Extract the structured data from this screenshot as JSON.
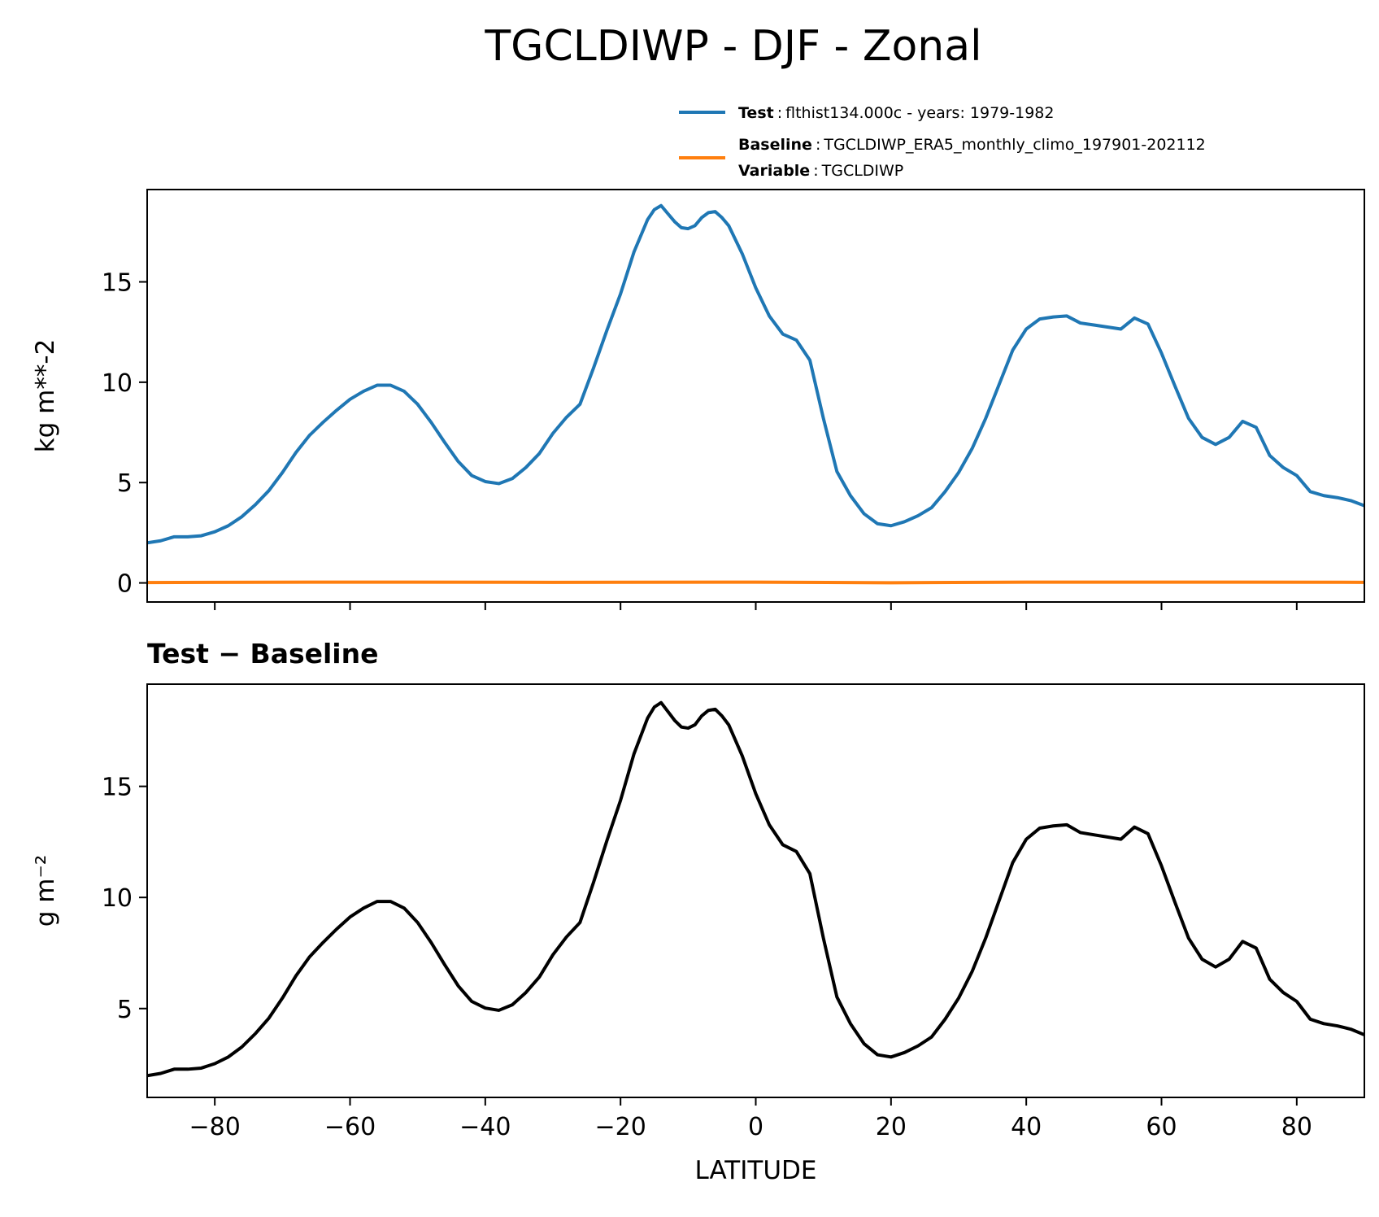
{
  "figure": {
    "title": "TGCLDIWP - DJF - Zonal"
  },
  "legend": {
    "test": {
      "key": "Test",
      "sep": ":",
      "text": "flthist134.000c - years: 1979-1982"
    },
    "baseline": {
      "key": "Baseline",
      "sep": ":",
      "text": "TGCLDIWP_ERA5_monthly_climo_197901-202112"
    },
    "variable": {
      "key": "Variable",
      "sep": ":",
      "text": "TGCLDIWP"
    }
  },
  "colors": {
    "test": "#1f77b4",
    "baseline": "#ff7f0e",
    "difference": "#000000"
  },
  "chart_data": [
    {
      "type": "line",
      "xlabel": "",
      "ylabel": "kg m**-2",
      "xlim": [
        -90,
        90
      ],
      "ylim": [
        -0.95,
        19.6
      ],
      "xticks": [
        -80,
        -60,
        -40,
        -20,
        0,
        20,
        40,
        60,
        80
      ],
      "xtick_labels_visible": false,
      "yticks": [
        0,
        5,
        10,
        15
      ],
      "series": [
        {
          "name": "Test",
          "x": [
            -90,
            -88,
            -86,
            -84,
            -82,
            -80,
            -78,
            -76,
            -74,
            -72,
            -70,
            -68,
            -66,
            -64,
            -62,
            -60,
            -58,
            -56,
            -54,
            -52,
            -50,
            -48,
            -46,
            -44,
            -42,
            -40,
            -38,
            -36,
            -34,
            -32,
            -30,
            -28,
            -26,
            -24,
            -22,
            -20,
            -18,
            -16,
            -15,
            -14,
            -13,
            -12,
            -11,
            -10,
            -9,
            -8,
            -7,
            -6,
            -5,
            -4,
            -2,
            0,
            2,
            4,
            6,
            8,
            10,
            12,
            14,
            16,
            18,
            20,
            22,
            24,
            26,
            28,
            30,
            32,
            34,
            36,
            38,
            40,
            42,
            44,
            46,
            48,
            50,
            52,
            54,
            56,
            58,
            60,
            62,
            64,
            66,
            68,
            70,
            72,
            74,
            76,
            78,
            80,
            82,
            84,
            86,
            88,
            90
          ],
          "values": [
            2.0,
            2.1,
            2.3,
            2.3,
            2.35,
            2.55,
            2.85,
            3.3,
            3.9,
            4.6,
            5.5,
            6.5,
            7.35,
            8.0,
            8.6,
            9.15,
            9.55,
            9.85,
            9.85,
            9.55,
            8.9,
            8.0,
            7.0,
            6.05,
            5.35,
            5.05,
            4.95,
            5.2,
            5.75,
            6.45,
            7.45,
            8.25,
            8.9,
            10.7,
            12.6,
            14.4,
            16.5,
            18.1,
            18.6,
            18.8,
            18.4,
            18.0,
            17.7,
            17.65,
            17.8,
            18.2,
            18.45,
            18.5,
            18.2,
            17.8,
            16.4,
            14.7,
            13.3,
            12.4,
            12.1,
            11.1,
            8.2,
            5.55,
            4.35,
            3.45,
            2.95,
            2.85,
            3.05,
            3.35,
            3.75,
            4.55,
            5.5,
            6.7,
            8.2,
            9.9,
            11.6,
            12.65,
            13.15,
            13.25,
            13.3,
            12.95,
            12.85,
            12.75,
            12.65,
            13.2,
            12.9,
            11.45,
            9.8,
            8.2,
            7.25,
            6.9,
            7.25,
            8.05,
            7.75,
            6.35,
            5.75,
            5.35,
            4.55,
            4.35,
            4.25,
            4.1,
            3.85
          ]
        },
        {
          "name": "Baseline",
          "x": [
            -90,
            -60,
            -30,
            0,
            20,
            40,
            60,
            90
          ],
          "values": [
            0.02,
            0.04,
            0.03,
            0.04,
            0.01,
            0.04,
            0.04,
            0.03
          ]
        }
      ]
    },
    {
      "type": "line",
      "title": "Test − Baseline",
      "xlabel": "LATITUDE",
      "ylabel": "g m⁻²",
      "xlim": [
        -90,
        90
      ],
      "ylim": [
        1.0,
        19.6
      ],
      "xticks": [
        -80,
        -60,
        -40,
        -20,
        0,
        20,
        40,
        60,
        80
      ],
      "xtick_labels": [
        "−80",
        "−60",
        "−40",
        "−20",
        "0",
        "20",
        "40",
        "60",
        "80"
      ],
      "yticks": [
        5,
        10,
        15
      ],
      "series": [
        {
          "name": "",
          "x": [
            -90,
            -88,
            -86,
            -84,
            -82,
            -80,
            -78,
            -76,
            -74,
            -72,
            -70,
            -68,
            -66,
            -64,
            -62,
            -60,
            -58,
            -56,
            -54,
            -52,
            -50,
            -48,
            -46,
            -44,
            -42,
            -40,
            -38,
            -36,
            -34,
            -32,
            -30,
            -28,
            -26,
            -24,
            -22,
            -20,
            -18,
            -16,
            -15,
            -14,
            -13,
            -12,
            -11,
            -10,
            -9,
            -8,
            -7,
            -6,
            -5,
            -4,
            -2,
            0,
            2,
            4,
            6,
            8,
            10,
            12,
            14,
            16,
            18,
            20,
            22,
            24,
            26,
            28,
            30,
            32,
            34,
            36,
            38,
            40,
            42,
            44,
            46,
            48,
            50,
            52,
            54,
            56,
            58,
            60,
            62,
            64,
            66,
            68,
            70,
            72,
            74,
            76,
            78,
            80,
            82,
            84,
            86,
            88,
            90
          ],
          "values": [
            1.98,
            2.08,
            2.27,
            2.27,
            2.32,
            2.52,
            2.82,
            3.27,
            3.87,
            4.57,
            5.47,
            6.47,
            7.32,
            7.97,
            8.57,
            9.12,
            9.52,
            9.82,
            9.82,
            9.52,
            8.87,
            7.97,
            6.97,
            6.02,
            5.32,
            5.02,
            4.92,
            5.17,
            5.72,
            6.42,
            7.42,
            8.22,
            8.87,
            10.67,
            12.57,
            14.37,
            16.47,
            18.07,
            18.57,
            18.77,
            18.37,
            17.97,
            17.67,
            17.62,
            17.77,
            18.17,
            18.42,
            18.47,
            18.17,
            17.77,
            16.37,
            14.67,
            13.27,
            12.37,
            12.07,
            11.07,
            8.17,
            5.52,
            4.32,
            3.42,
            2.92,
            2.82,
            3.02,
            3.32,
            3.72,
            4.52,
            5.47,
            6.67,
            8.17,
            9.87,
            11.57,
            12.62,
            13.12,
            13.22,
            13.27,
            12.92,
            12.82,
            12.72,
            12.62,
            13.17,
            12.87,
            11.42,
            9.77,
            8.17,
            7.22,
            6.87,
            7.22,
            8.02,
            7.72,
            6.32,
            5.72,
            5.32,
            4.52,
            4.32,
            4.22,
            4.07,
            3.82
          ]
        }
      ]
    }
  ]
}
